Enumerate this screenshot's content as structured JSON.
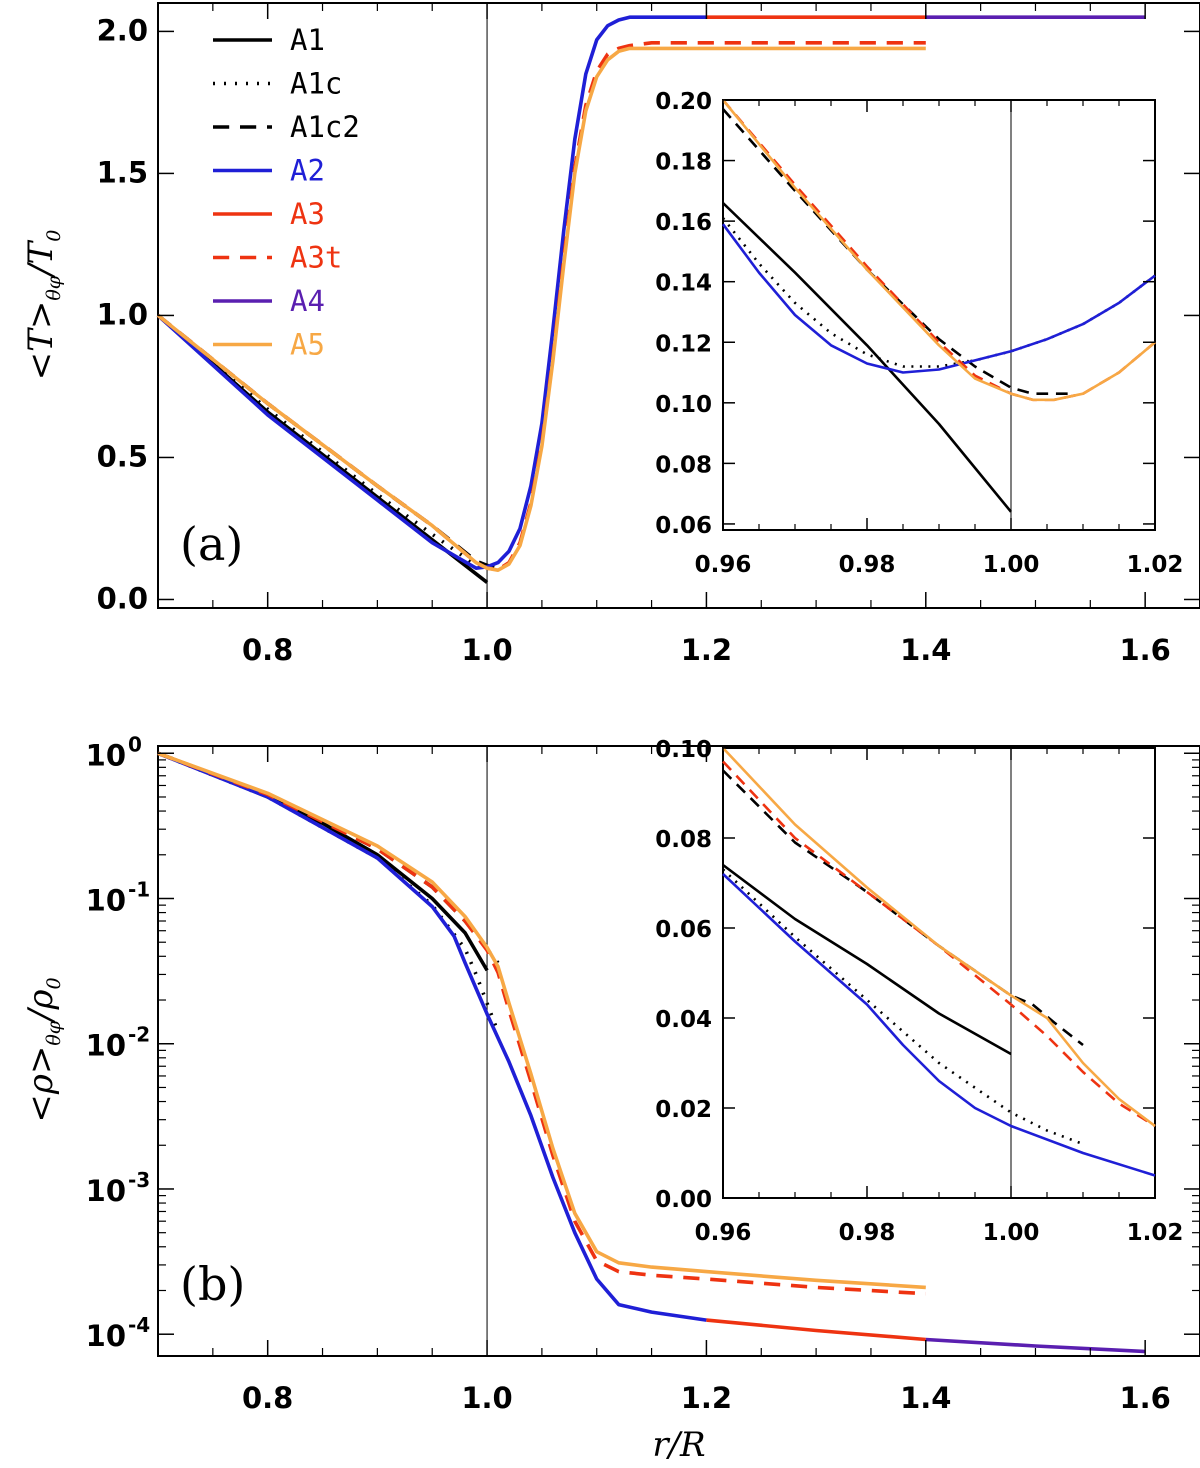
{
  "colors": {
    "A1": "#000000",
    "A1c": "#000000",
    "A1c2": "#000000",
    "A2": "#1f1fd6",
    "A3": "#ee3311",
    "A3t": "#ee3311",
    "A4": "#5a1fb0",
    "A5": "#f7a845"
  },
  "chart_data": [
    {
      "id": "panel-a",
      "type": "line",
      "panel_label": "(a)",
      "ylabel": "<T>θφ/T₀",
      "ylabel_parts": {
        "main": "<T>",
        "sub": "θφ",
        "tail": "/T",
        "tail_sub": "0"
      },
      "xlabel": "",
      "xlim": [
        0.7,
        1.65
      ],
      "ylim": [
        -0.03,
        2.1
      ],
      "xticks": [
        0.8,
        1.0,
        1.2,
        1.4,
        1.6
      ],
      "xtick_labels": [
        "0.8",
        "1.0",
        "1.2",
        "1.4",
        "1.6"
      ],
      "yticks": [
        0.0,
        0.5,
        1.0,
        1.5,
        2.0
      ],
      "ytick_labels": [
        "0.0",
        "0.5",
        "1.0",
        "1.5",
        "2.0"
      ],
      "vline": 1.0,
      "legend": [
        "A1",
        "A1c",
        "A1c2",
        "A2",
        "A3",
        "A3t",
        "A4",
        "A5"
      ],
      "series": [
        {
          "name": "A1",
          "style": "solid",
          "x": [
            0.7,
            0.8,
            0.9,
            0.95,
            1.0
          ],
          "y": [
            1.0,
            0.66,
            0.36,
            0.21,
            0.06
          ]
        },
        {
          "name": "A1c",
          "style": "dotted",
          "x": [
            0.7,
            0.8,
            0.9,
            0.95,
            0.99,
            1.0,
            1.01
          ],
          "y": [
            1.0,
            0.67,
            0.37,
            0.23,
            0.12,
            0.115,
            0.12
          ]
        },
        {
          "name": "A1c2",
          "style": "dashed",
          "x": [
            0.7,
            0.8,
            0.9,
            0.95,
            0.99,
            1.0,
            1.01
          ],
          "y": [
            1.0,
            0.69,
            0.4,
            0.26,
            0.135,
            0.12,
            0.11
          ]
        },
        {
          "name": "A2",
          "style": "solid",
          "x": [
            0.7,
            0.8,
            0.9,
            0.95,
            0.99,
            1.0,
            1.01,
            1.02,
            1.03,
            1.04,
            1.05,
            1.06,
            1.07,
            1.08,
            1.09,
            1.1,
            1.11,
            1.12,
            1.13,
            1.15,
            1.2
          ],
          "y": [
            1.0,
            0.65,
            0.35,
            0.2,
            0.11,
            0.115,
            0.13,
            0.17,
            0.25,
            0.4,
            0.62,
            0.95,
            1.3,
            1.62,
            1.85,
            1.97,
            2.02,
            2.04,
            2.05,
            2.05,
            2.05
          ]
        },
        {
          "name": "A3",
          "style": "solid",
          "x": [
            1.2,
            1.3,
            1.4
          ],
          "y": [
            2.05,
            2.05,
            2.05
          ]
        },
        {
          "name": "A3t",
          "style": "dashed",
          "x": [
            0.7,
            0.8,
            0.9,
            0.95,
            0.99,
            1.0,
            1.01,
            1.02,
            1.03,
            1.04,
            1.05,
            1.06,
            1.07,
            1.08,
            1.09,
            1.1,
            1.11,
            1.12,
            1.13,
            1.15,
            1.2,
            1.3,
            1.4
          ],
          "y": [
            1.0,
            0.69,
            0.4,
            0.26,
            0.13,
            0.11,
            0.105,
            0.13,
            0.2,
            0.34,
            0.55,
            0.85,
            1.2,
            1.52,
            1.74,
            1.86,
            1.92,
            1.94,
            1.95,
            1.96,
            1.96,
            1.96,
            1.96
          ]
        },
        {
          "name": "A4",
          "style": "solid",
          "x": [
            1.4,
            1.5,
            1.6
          ],
          "y": [
            2.05,
            2.05,
            2.05
          ]
        },
        {
          "name": "A5",
          "style": "solid",
          "x": [
            0.7,
            0.8,
            0.9,
            0.95,
            0.99,
            1.0,
            1.01,
            1.02,
            1.03,
            1.04,
            1.05,
            1.06,
            1.07,
            1.08,
            1.09,
            1.1,
            1.11,
            1.12,
            1.13,
            1.15,
            1.2,
            1.3,
            1.4
          ],
          "y": [
            1.0,
            0.69,
            0.4,
            0.26,
            0.13,
            0.11,
            0.103,
            0.125,
            0.19,
            0.33,
            0.54,
            0.84,
            1.18,
            1.5,
            1.72,
            1.84,
            1.9,
            1.93,
            1.94,
            1.94,
            1.94,
            1.94,
            1.94
          ]
        }
      ],
      "inset": {
        "xlim": [
          0.96,
          1.02
        ],
        "ylim": [
          0.058,
          0.2
        ],
        "xticks": [
          0.96,
          0.98,
          1.0,
          1.02
        ],
        "xtick_labels": [
          "0.96",
          "0.98",
          "1.00",
          "1.02"
        ],
        "yticks": [
          0.06,
          0.08,
          0.1,
          0.12,
          0.14,
          0.16,
          0.18,
          0.2
        ],
        "ytick_labels": [
          "0.06",
          "0.08",
          "0.10",
          "0.12",
          "0.14",
          "0.16",
          "0.18",
          "0.20"
        ],
        "vline": 1.0,
        "series": [
          {
            "name": "A1",
            "style": "solid",
            "x": [
              0.96,
              0.97,
              0.98,
              0.99,
              1.0
            ],
            "y": [
              0.166,
              0.143,
              0.119,
              0.093,
              0.064
            ]
          },
          {
            "name": "A1c",
            "style": "dotted",
            "x": [
              0.96,
              0.965,
              0.97,
              0.975,
              0.98,
              0.985,
              0.99,
              0.995,
              1.0,
              1.005,
              1.01,
              1.015,
              1.02
            ],
            "y": [
              0.161,
              0.146,
              0.133,
              0.123,
              0.116,
              0.112,
              0.112,
              0.114,
              0.117,
              0.121,
              0.126,
              0.133,
              0.142
            ]
          },
          {
            "name": "A1c2",
            "style": "dashed",
            "x": [
              0.96,
              0.97,
              0.98,
              0.99,
              0.995,
              1.0,
              1.003,
              1.006,
              1.008
            ],
            "y": [
              0.197,
              0.17,
              0.144,
              0.121,
              0.112,
              0.105,
              0.103,
              0.103,
              0.103
            ]
          },
          {
            "name": "A2",
            "style": "solid",
            "x": [
              0.96,
              0.965,
              0.97,
              0.975,
              0.98,
              0.985,
              0.99,
              0.995,
              1.0,
              1.005,
              1.01,
              1.015,
              1.02
            ],
            "y": [
              0.159,
              0.143,
              0.129,
              0.119,
              0.113,
              0.11,
              0.111,
              0.114,
              0.117,
              0.121,
              0.126,
              0.133,
              0.142
            ]
          },
          {
            "name": "A3t",
            "style": "dashed",
            "x": [
              0.96,
              0.97,
              0.98,
              0.99,
              0.995,
              1.0,
              1.003,
              1.006,
              1.01,
              1.015,
              1.02
            ],
            "y": [
              0.2,
              0.172,
              0.145,
              0.12,
              0.109,
              0.103,
              0.101,
              0.101,
              0.103,
              0.11,
              0.12
            ]
          },
          {
            "name": "A5",
            "style": "solid",
            "x": [
              0.96,
              0.97,
              0.98,
              0.99,
              0.995,
              1.0,
              1.003,
              1.006,
              1.01,
              1.015,
              1.02
            ],
            "y": [
              0.2,
              0.171,
              0.144,
              0.119,
              0.108,
              0.103,
              0.101,
              0.101,
              0.103,
              0.11,
              0.12
            ]
          }
        ]
      }
    },
    {
      "id": "panel-b",
      "type": "line",
      "yscale": "log",
      "panel_label": "(b)",
      "ylabel": "<ρ>θφ/ρ₀",
      "ylabel_parts": {
        "main": "<ρ>",
        "sub": "θφ",
        "tail": "/ρ",
        "tail_sub": "0"
      },
      "xlabel": "r/R",
      "xlim": [
        0.7,
        1.65
      ],
      "ylim_log10": [
        -4.15,
        0.05
      ],
      "xticks": [
        0.8,
        1.0,
        1.2,
        1.4,
        1.6
      ],
      "xtick_labels": [
        "0.8",
        "1.0",
        "1.2",
        "1.4",
        "1.6"
      ],
      "ytick_exponents": [
        "0",
        "-1",
        "-2",
        "-3",
        "-4"
      ],
      "ytick_base": "10",
      "vline": 1.0,
      "series": [
        {
          "name": "A1",
          "style": "solid",
          "x": [
            0.7,
            0.75,
            0.8,
            0.85,
            0.9,
            0.95,
            0.98,
            1.0
          ],
          "y": [
            1.0,
            0.72,
            0.5,
            0.33,
            0.2,
            0.1,
            0.058,
            0.032
          ]
        },
        {
          "name": "A1c",
          "style": "dotted",
          "x": [
            0.7,
            0.8,
            0.9,
            0.95,
            0.98,
            0.99,
            1.0,
            1.01
          ],
          "y": [
            1.0,
            0.5,
            0.19,
            0.09,
            0.045,
            0.03,
            0.019,
            0.012
          ]
        },
        {
          "name": "A1c2",
          "style": "dashed",
          "x": [
            0.7,
            0.8,
            0.9,
            0.95,
            0.98,
            1.0,
            1.01
          ],
          "y": [
            1.0,
            0.52,
            0.22,
            0.12,
            0.07,
            0.045,
            0.036
          ]
        },
        {
          "name": "A2",
          "style": "solid",
          "x": [
            0.7,
            0.8,
            0.9,
            0.95,
            0.97,
            0.98,
            0.99,
            1.0,
            1.02,
            1.04,
            1.06,
            1.08,
            1.1,
            1.12,
            1.15,
            1.2
          ],
          "y": [
            1.0,
            0.5,
            0.19,
            0.088,
            0.055,
            0.036,
            0.024,
            0.016,
            0.0075,
            0.0032,
            0.0012,
            0.0005,
            0.00024,
            0.00016,
            0.000142,
            0.000125
          ]
        },
        {
          "name": "A3",
          "style": "solid",
          "x": [
            1.2,
            1.3,
            1.4
          ],
          "y": [
            0.000125,
            0.000106,
            9.2e-05
          ]
        },
        {
          "name": "A3t",
          "style": "dashed",
          "x": [
            0.7,
            0.8,
            0.9,
            0.95,
            0.98,
            1.0,
            1.01,
            1.02,
            1.04,
            1.06,
            1.08,
            1.1,
            1.12,
            1.15,
            1.2,
            1.3,
            1.4
          ],
          "y": [
            1.0,
            0.52,
            0.22,
            0.12,
            0.07,
            0.044,
            0.031,
            0.017,
            0.0055,
            0.0017,
            0.0006,
            0.00032,
            0.00027,
            0.000255,
            0.00024,
            0.00021,
            0.00019
          ]
        },
        {
          "name": "A4",
          "style": "solid",
          "x": [
            1.4,
            1.5,
            1.6
          ],
          "y": [
            9.2e-05,
            8.3e-05,
            7.6e-05
          ]
        },
        {
          "name": "A5",
          "style": "solid",
          "x": [
            0.7,
            0.8,
            0.9,
            0.95,
            0.98,
            1.0,
            1.01,
            1.02,
            1.04,
            1.06,
            1.08,
            1.1,
            1.12,
            1.15,
            1.2,
            1.3,
            1.4
          ],
          "y": [
            1.0,
            0.53,
            0.23,
            0.13,
            0.075,
            0.046,
            0.034,
            0.019,
            0.0062,
            0.0019,
            0.00068,
            0.00037,
            0.00031,
            0.00029,
            0.00027,
            0.000235,
            0.00021
          ]
        }
      ],
      "inset": {
        "xlim": [
          0.96,
          1.02
        ],
        "ylim": [
          0.0,
          0.1
        ],
        "xticks": [
          0.96,
          0.98,
          1.0,
          1.02
        ],
        "xtick_labels": [
          "0.96",
          "0.98",
          "1.00",
          "1.02"
        ],
        "yticks": [
          0.0,
          0.02,
          0.04,
          0.06,
          0.08,
          0.1
        ],
        "ytick_labels": [
          "0.00",
          "0.02",
          "0.04",
          "0.06",
          "0.08",
          "0.10"
        ],
        "vline": 1.0,
        "series": [
          {
            "name": "A1",
            "style": "solid",
            "x": [
              0.96,
              0.97,
              0.98,
              0.99,
              1.0
            ],
            "y": [
              0.074,
              0.062,
              0.052,
              0.041,
              0.032
            ]
          },
          {
            "name": "A1c",
            "style": "dotted",
            "x": [
              0.96,
              0.97,
              0.98,
              0.99,
              1.0,
              1.005,
              1.01
            ],
            "y": [
              0.073,
              0.058,
              0.044,
              0.03,
              0.019,
              0.015,
              0.012
            ]
          },
          {
            "name": "A1c2",
            "style": "dashed",
            "x": [
              0.96,
              0.97,
              0.98,
              0.99,
              1.0,
              1.003,
              1.006,
              1.01
            ],
            "y": [
              0.095,
              0.079,
              0.068,
              0.056,
              0.045,
              0.043,
              0.039,
              0.034
            ]
          },
          {
            "name": "A2",
            "style": "solid",
            "x": [
              0.96,
              0.97,
              0.98,
              0.985,
              0.99,
              0.995,
              1.0,
              1.01,
              1.02
            ],
            "y": [
              0.072,
              0.057,
              0.043,
              0.034,
              0.026,
              0.02,
              0.016,
              0.01,
              0.005
            ]
          },
          {
            "name": "A3t",
            "style": "dashed",
            "x": [
              0.96,
              0.97,
              0.98,
              0.99,
              1.0,
              1.005,
              1.01,
              1.015,
              1.02
            ],
            "y": [
              0.097,
              0.08,
              0.068,
              0.056,
              0.043,
              0.036,
              0.028,
              0.021,
              0.016
            ]
          },
          {
            "name": "A5",
            "style": "solid",
            "x": [
              0.96,
              0.97,
              0.98,
              0.99,
              1.0,
              1.005,
              1.01,
              1.015,
              1.02
            ],
            "y": [
              0.1,
              0.083,
              0.069,
              0.056,
              0.045,
              0.04,
              0.03,
              0.022,
              0.016
            ]
          }
        ]
      }
    }
  ]
}
